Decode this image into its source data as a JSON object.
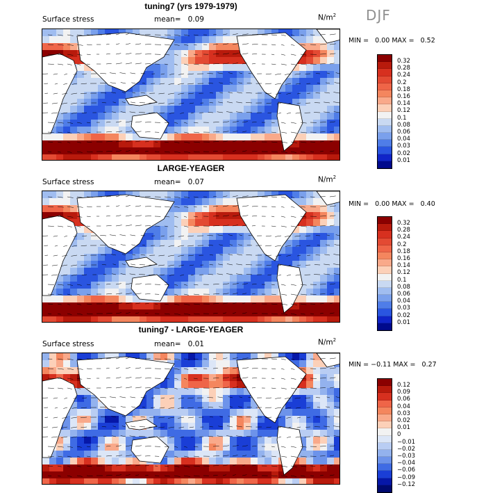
{
  "season": "DJF",
  "panels": [
    {
      "title": "tuning7 (yrs 1979-1979)",
      "variable": "Surface stress",
      "mean_label": "mean=",
      "mean_value": "0.09",
      "units": "N/m",
      "units_exp": "2",
      "min_label": "MIN =",
      "min_value": "0.00",
      "max_label": "MAX =",
      "max_value": "0.52",
      "colorbar": {
        "levels": [
          "0.32",
          "0.28",
          "0.24",
          "0.2",
          "0.18",
          "0.16",
          "0.14",
          "0.12",
          "0.1",
          "0.08",
          "0.06",
          "0.04",
          "0.03",
          "0.02",
          "0.01"
        ],
        "colors": [
          "#8b0000",
          "#b81a0c",
          "#d7301f",
          "#e34a33",
          "#ef6548",
          "#f4865e",
          "#f9a98a",
          "#fcd0b8",
          "#f2f2f2",
          "#c9d9f2",
          "#a0bdf0",
          "#7aa0ec",
          "#4f7de8",
          "#2a55e0",
          "#1024c8",
          "#000a8c"
        ]
      }
    },
    {
      "title": "LARGE-YEAGER",
      "variable": "Surface stress",
      "mean_label": "mean=",
      "mean_value": "0.07",
      "units": "N/m",
      "units_exp": "2",
      "min_label": "MIN =",
      "min_value": "0.00",
      "max_label": "MAX =",
      "max_value": "0.40",
      "colorbar": {
        "levels": [
          "0.32",
          "0.28",
          "0.24",
          "0.2",
          "0.18",
          "0.16",
          "0.14",
          "0.12",
          "0.1",
          "0.08",
          "0.06",
          "0.04",
          "0.03",
          "0.02",
          "0.01"
        ],
        "colors": [
          "#8b0000",
          "#b81a0c",
          "#d7301f",
          "#e34a33",
          "#ef6548",
          "#f4865e",
          "#f9a98a",
          "#fcd0b8",
          "#f2f2f2",
          "#c9d9f2",
          "#a0bdf0",
          "#7aa0ec",
          "#4f7de8",
          "#2a55e0",
          "#1024c8",
          "#000a8c"
        ]
      }
    },
    {
      "title": "tuning7 - LARGE-YEAGER",
      "variable": "Surface stress",
      "mean_label": "mean=",
      "mean_value": "0.01",
      "units": "N/m",
      "units_exp": "2",
      "min_label": "MIN =",
      "min_value": "−0.11",
      "max_label": "MAX =",
      "max_value": "0.27",
      "colorbar": {
        "levels": [
          "0.12",
          "0.09",
          "0.06",
          "0.04",
          "0.03",
          "0.02",
          "0.01",
          "0",
          "−0.01",
          "−0.02",
          "−0.03",
          "−0.04",
          "−0.06",
          "−0.09",
          "−0.12"
        ],
        "colors": [
          "#8b0000",
          "#b81a0c",
          "#d7301f",
          "#ef6548",
          "#f4865e",
          "#f9a98a",
          "#fcd0b8",
          "#f2f2f2",
          "#dce6f7",
          "#b9cdf3",
          "#93b2ee",
          "#6d93ea",
          "#3f6be4",
          "#1a3ed6",
          "#0617a8",
          "#000a70"
        ]
      }
    }
  ]
}
